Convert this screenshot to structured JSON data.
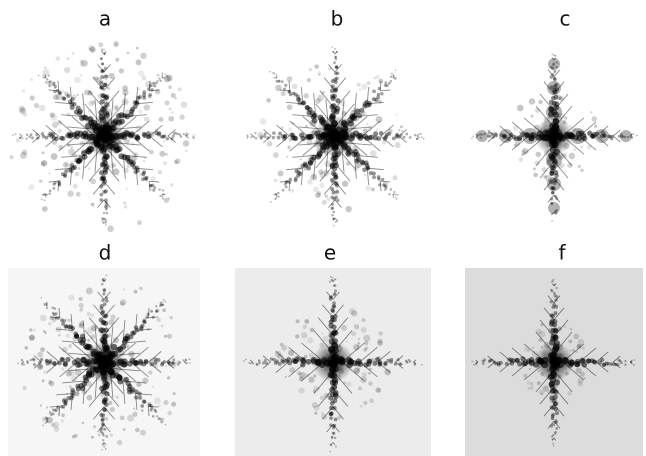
{
  "panels": [
    {
      "label": "a"
    },
    {
      "label": "b"
    },
    {
      "label": "c"
    },
    {
      "label": "d"
    },
    {
      "label": "e"
    },
    {
      "label": "f"
    }
  ]
}
